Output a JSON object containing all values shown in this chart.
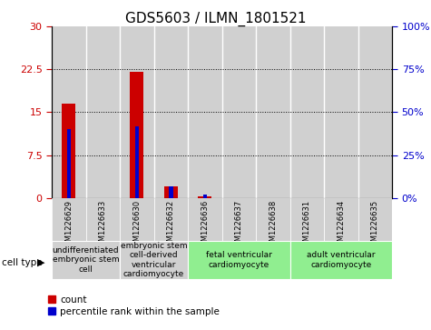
{
  "title": "GDS5603 / ILMN_1801521",
  "samples": [
    "GSM1226629",
    "GSM1226633",
    "GSM1226630",
    "GSM1226632",
    "GSM1226636",
    "GSM1226637",
    "GSM1226638",
    "GSM1226631",
    "GSM1226634",
    "GSM1226635"
  ],
  "count_values": [
    16.5,
    0,
    22.0,
    2.0,
    0.3,
    0,
    0,
    0,
    0,
    0
  ],
  "percentile_values": [
    40,
    0,
    42,
    7,
    2,
    0,
    0,
    0,
    0,
    0
  ],
  "left_ylim": [
    0,
    30
  ],
  "right_ylim": [
    0,
    100
  ],
  "left_yticks": [
    0,
    7.5,
    15,
    22.5,
    30
  ],
  "right_yticks": [
    0,
    25,
    50,
    75,
    100
  ],
  "left_ytick_labels": [
    "0",
    "7.5",
    "15",
    "22.5",
    "30"
  ],
  "right_ytick_labels": [
    "0%",
    "25%",
    "50%",
    "75%",
    "100%"
  ],
  "cell_type_groups": [
    {
      "label": "undifferentiated\nembryonic stem\ncell",
      "start": 0,
      "end": 2,
      "color": "#d0d0d0"
    },
    {
      "label": "embryonic stem\ncell-derived\nventricular\ncardiomyocyte",
      "start": 2,
      "end": 4,
      "color": "#d0d0d0"
    },
    {
      "label": "fetal ventricular\ncardiomyocyte",
      "start": 4,
      "end": 7,
      "color": "#90ee90"
    },
    {
      "label": "adult ventricular\ncardiomyocyte",
      "start": 7,
      "end": 10,
      "color": "#90ee90"
    }
  ],
  "count_color": "#cc0000",
  "percentile_color": "#0000cc",
  "bar_bg_color": "#d0d0d0",
  "title_fontsize": 11,
  "tick_fontsize": 8,
  "sample_fontsize": 6,
  "legend_fontsize": 7.5,
  "cell_type_fontsize": 6.5
}
